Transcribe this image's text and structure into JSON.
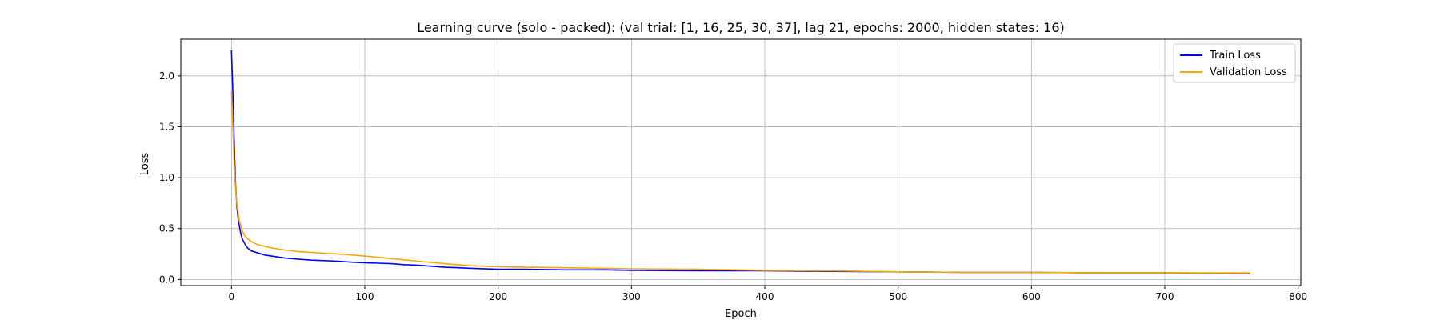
{
  "chart_data": {
    "type": "line",
    "title": "Learning curve (solo - packed): (val trial: [1, 16, 25, 30, 37], lag 21, epochs: 2000, hidden states: 16)",
    "xlabel": "Epoch",
    "ylabel": "Loss",
    "xlim": [
      -38,
      802
    ],
    "ylim": [
      -0.06,
      2.36
    ],
    "xticks": [
      0,
      100,
      200,
      300,
      400,
      500,
      600,
      700,
      800
    ],
    "yticks": [
      0.0,
      0.5,
      1.0,
      1.5,
      2.0
    ],
    "xtick_labels": [
      "0",
      "100",
      "200",
      "300",
      "400",
      "500",
      "600",
      "700",
      "800"
    ],
    "ytick_labels": [
      "0.0",
      "0.5",
      "1.0",
      "1.5",
      "2.0"
    ],
    "grid": true,
    "legend_position": "top-right",
    "series": [
      {
        "name": "Train Loss",
        "color": "#0000ff",
        "x": [
          0,
          1,
          2,
          3,
          4,
          5,
          6,
          7,
          8,
          10,
          12,
          15,
          20,
          25,
          30,
          40,
          50,
          60,
          70,
          80,
          90,
          100,
          110,
          120,
          130,
          140,
          150,
          160,
          170,
          180,
          200,
          220,
          250,
          280,
          300,
          350,
          400,
          450,
          500,
          550,
          600,
          650,
          700,
          764
        ],
        "values": [
          2.25,
          1.85,
          1.35,
          0.95,
          0.72,
          0.6,
          0.52,
          0.45,
          0.4,
          0.35,
          0.31,
          0.28,
          0.26,
          0.24,
          0.23,
          0.21,
          0.2,
          0.19,
          0.185,
          0.18,
          0.17,
          0.165,
          0.16,
          0.155,
          0.145,
          0.14,
          0.13,
          0.12,
          0.115,
          0.11,
          0.1,
          0.1,
          0.095,
          0.095,
          0.09,
          0.085,
          0.085,
          0.08,
          0.075,
          0.07,
          0.07,
          0.065,
          0.065,
          0.06
        ]
      },
      {
        "name": "Validation Loss",
        "color": "#ffa500",
        "x": [
          0,
          1,
          2,
          3,
          4,
          5,
          6,
          8,
          10,
          12,
          15,
          20,
          30,
          40,
          50,
          60,
          80,
          100,
          120,
          140,
          160,
          180,
          200,
          250,
          300,
          350,
          400,
          450,
          500,
          550,
          600,
          650,
          700,
          764
        ],
        "values": [
          1.85,
          1.5,
          1.15,
          0.9,
          0.75,
          0.65,
          0.57,
          0.48,
          0.43,
          0.4,
          0.37,
          0.34,
          0.31,
          0.29,
          0.275,
          0.265,
          0.25,
          0.23,
          0.205,
          0.18,
          0.155,
          0.135,
          0.125,
          0.115,
          0.105,
          0.1,
          0.09,
          0.085,
          0.075,
          0.07,
          0.07,
          0.065,
          0.065,
          0.065
        ]
      }
    ]
  }
}
